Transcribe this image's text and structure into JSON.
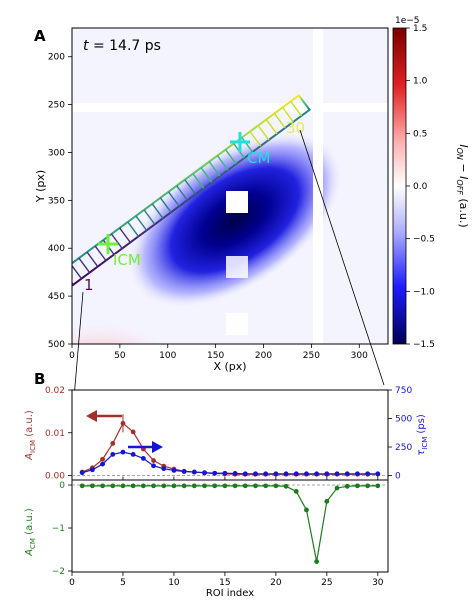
{
  "panels": {
    "a": {
      "letter": "A",
      "time_label_italic": "t",
      "time_label_rest": " = 14.7 ps",
      "xlabel": "X (px)",
      "ylabel": "Y (px)",
      "xticks": [
        "0",
        "50",
        "100",
        "150",
        "200",
        "250",
        "300"
      ],
      "yticks": [
        "200",
        "250",
        "300",
        "350",
        "400",
        "450",
        "500"
      ],
      "annotations": {
        "cm": "CM",
        "icm": "ICM",
        "roi_first": "1",
        "roi_last": "30"
      },
      "colorbar": {
        "exponent": "1e−5",
        "ticks": [
          "1.5",
          "1.0",
          "0.5",
          "0.0",
          "−0.5",
          "−1.0",
          "−1.5"
        ],
        "label": "I_ON − I_OFF (a.u.)"
      }
    },
    "b": {
      "letter": "B",
      "xlabel": "ROI index",
      "top_left_ylabel": "A_ICM (a.u.)",
      "top_right_ylabel": "τ_ICM (ps)",
      "bottom_ylabel": "A_CM (a.u.)"
    }
  },
  "colors": {
    "icm_series": "#a0322b",
    "tau_series": "#1515d6",
    "cm_series": "#1e7a1e",
    "cm_marker": "#1fe0e0",
    "icm_marker": "#6ef03a",
    "roi_first_label": "#4b1060",
    "roi_last_label": "#e8e860"
  },
  "chart_data": [
    {
      "type": "heatmap",
      "title": "t = 14.7 ps",
      "xlabel": "X (px)",
      "ylabel": "Y (px)",
      "xlim": [
        0,
        330
      ],
      "ylim": [
        500,
        170
      ],
      "colorbar_range": [
        -1.5e-05,
        1.5e-05
      ],
      "colorbar_label": "I_ON − I_OFF (a.u.)",
      "markers": [
        {
          "label": "CM",
          "x": 180,
          "y": 290
        },
        {
          "label": "ICM",
          "x": 35,
          "y": 395
        }
      ],
      "roi_count": 30
    },
    {
      "type": "line",
      "xlabel": "ROI index",
      "xlim": [
        0,
        31
      ],
      "x": [
        1,
        2,
        3,
        4,
        5,
        6,
        7,
        8,
        9,
        10,
        11,
        12,
        13,
        14,
        15,
        16,
        17,
        18,
        19,
        20,
        21,
        22,
        23,
        24,
        25,
        26,
        27,
        28,
        29,
        30
      ],
      "series": [
        {
          "name": "A_ICM",
          "axis": "left",
          "ylabel": "A_ICM (a.u.)",
          "ylim": [
            0,
            0.02
          ],
          "yticks": [
            "0.00",
            "0.01",
            "0.02"
          ],
          "values": [
            0.0008,
            0.0018,
            0.0038,
            0.0075,
            0.0122,
            0.0102,
            0.0062,
            0.0035,
            0.0022,
            0.0015,
            0.001,
            0.0008,
            0.0006,
            0.0005,
            0.0004,
            0.0003,
            0.0003,
            0.0003,
            0.0003,
            0.0003,
            0.0003,
            0.0003,
            0.0003,
            0.0003,
            0.0003,
            0.0003,
            0.0003,
            0.0003,
            0.0003,
            0.0003
          ]
        },
        {
          "name": "τ_ICM",
          "axis": "right",
          "ylabel": "τ_ICM (ps)",
          "ylim": [
            0,
            750
          ],
          "yticks": [
            "0",
            "250",
            "500",
            "750"
          ],
          "values": [
            25,
            50,
            100,
            185,
            205,
            185,
            150,
            85,
            60,
            45,
            35,
            30,
            25,
            20,
            20,
            18,
            15,
            15,
            15,
            15,
            15,
            15,
            15,
            15,
            15,
            15,
            15,
            15,
            15,
            15
          ]
        },
        {
          "name": "A_CM",
          "axis": "bottom",
          "ylabel": "A_CM (a.u.)",
          "ylim": [
            -2,
            0.1
          ],
          "yticks": [
            "0",
            "−1",
            "−2"
          ],
          "values": [
            -0.02,
            -0.02,
            -0.02,
            -0.02,
            -0.02,
            -0.02,
            -0.02,
            -0.02,
            -0.02,
            -0.02,
            -0.02,
            -0.02,
            -0.02,
            -0.02,
            -0.02,
            -0.02,
            -0.02,
            -0.02,
            -0.02,
            -0.02,
            -0.03,
            -0.15,
            -0.58,
            -1.78,
            -0.38,
            -0.07,
            -0.03,
            -0.02,
            -0.02,
            -0.02
          ]
        }
      ]
    }
  ]
}
